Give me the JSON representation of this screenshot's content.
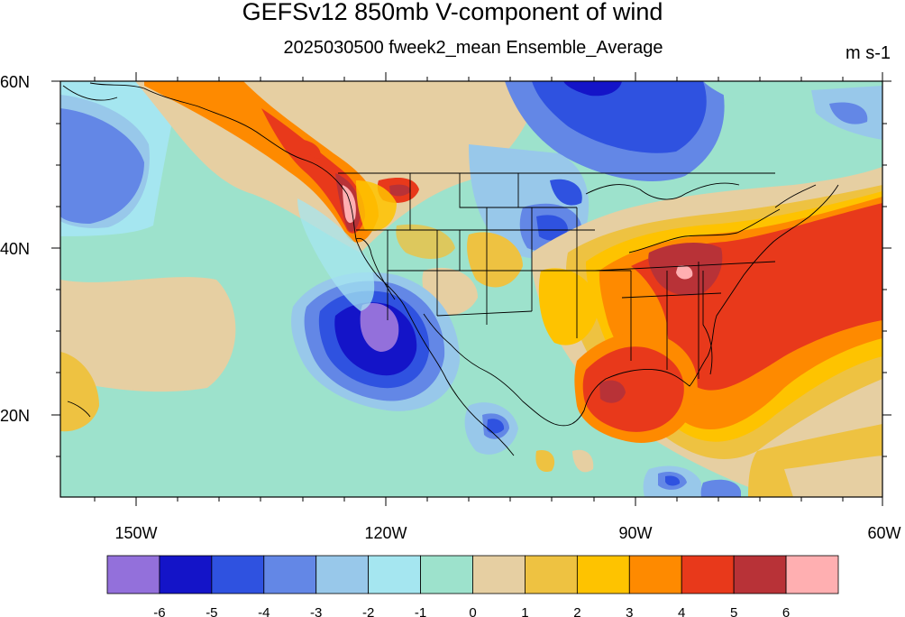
{
  "map": {
    "title": "GEFSv12 850mb V-component of wind",
    "subtitle": "2025030500 fweek2_mean Ensemble_Average",
    "units": "m s-1",
    "lat_labels": [
      "60N",
      "40N",
      "20N"
    ],
    "lon_labels": [
      "150W",
      "120W",
      "90W",
      "60W"
    ],
    "region": {
      "lon_range": [
        -159,
        -60
      ],
      "lat_range": [
        10,
        60
      ]
    },
    "variable": "850mb meridional wind (V), ensemble mean",
    "features": [
      {
        "name": "trough-west-coast",
        "value_range": "-6 to -5",
        "color": "#9370db"
      },
      {
        "name": "ridge-southeast-us",
        "value_range": "5 to 6",
        "color": "#e8391b"
      }
    ]
  },
  "colorbar": {
    "colors": [
      "#9370db",
      "#1414c8",
      "#2f52e0",
      "#6387e6",
      "#98c8ea",
      "#a5e6f0",
      "#9de2cc",
      "#e6cfa2",
      "#eec241",
      "#fec300",
      "#fe8a00",
      "#e8391b",
      "#b83237",
      "#ffafb1"
    ],
    "labels": [
      "-6",
      "-5",
      "-4",
      "-3",
      "-2",
      "-1",
      "0",
      "1",
      "2",
      "3",
      "4",
      "5",
      "6"
    ]
  }
}
